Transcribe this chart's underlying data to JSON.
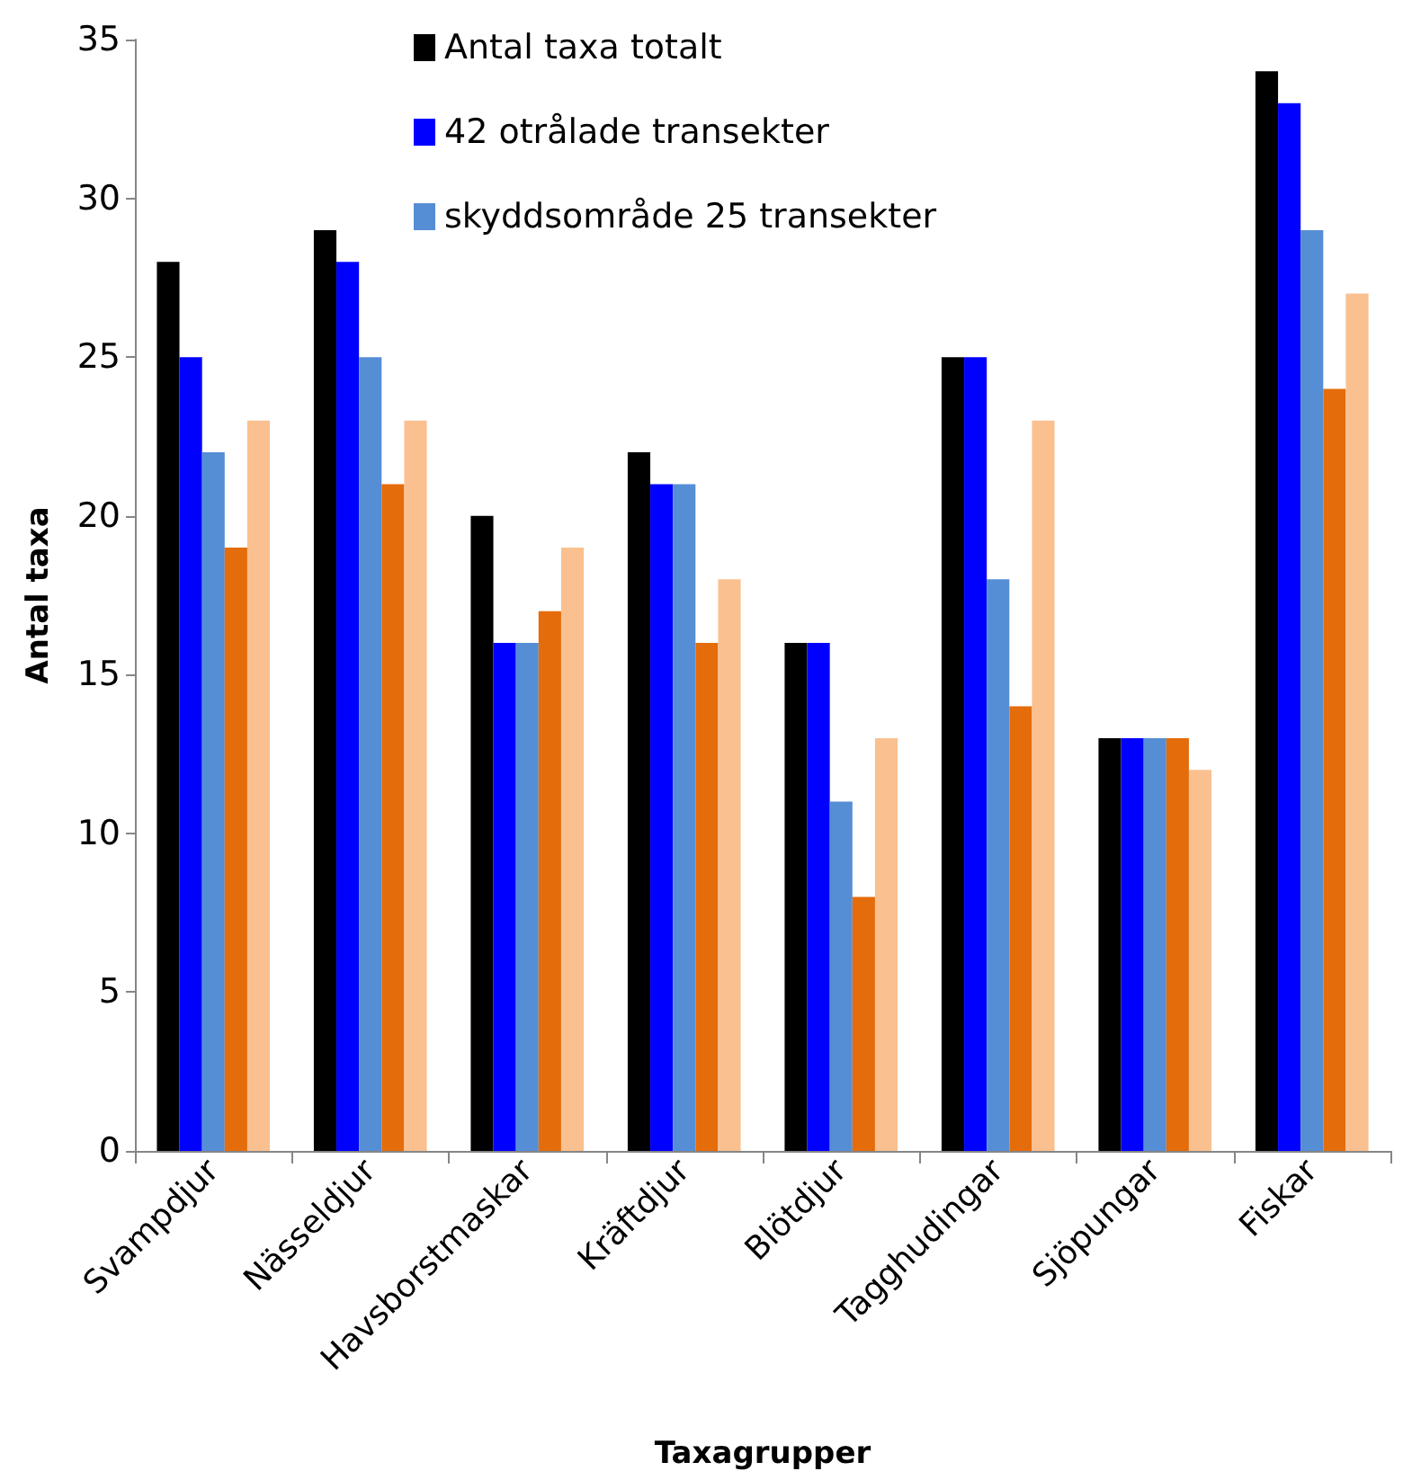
{
  "chart_data": {
    "type": "bar",
    "xlabel": "Taxagrupper",
    "ylabel": "Antal taxa",
    "categories": [
      "Svampdjur",
      "Nässeldjur",
      "Havsborstmaskar",
      "Kräftdjur",
      "Blötdjur",
      "Tagghudingar",
      "Sjöpungar",
      "Fiskar"
    ],
    "series": [
      {
        "name": "Antal taxa totalt",
        "color": "#000000",
        "values": [
          28,
          29,
          20,
          22,
          16,
          25,
          13,
          34
        ]
      },
      {
        "name": "42 otrålade transekter",
        "color": "#0000ff",
        "values": [
          25,
          28,
          16,
          21,
          16,
          25,
          13,
          33
        ]
      },
      {
        "name": "skyddsområde 25 transekter",
        "color": "#558ed5",
        "values": [
          22,
          25,
          16,
          21,
          11,
          18,
          13,
          29
        ]
      },
      {
        "color": "#e46c0a",
        "values": [
          19,
          21,
          17,
          16,
          8,
          14,
          13,
          24
        ]
      },
      {
        "color": "#fac090",
        "values": [
          23,
          23,
          19,
          18,
          13,
          23,
          12,
          27
        ]
      }
    ],
    "ylim": [
      0,
      35
    ],
    "yticks": [
      0,
      5,
      10,
      15,
      20,
      25,
      30,
      35
    ],
    "grid": false,
    "legend": "top"
  }
}
